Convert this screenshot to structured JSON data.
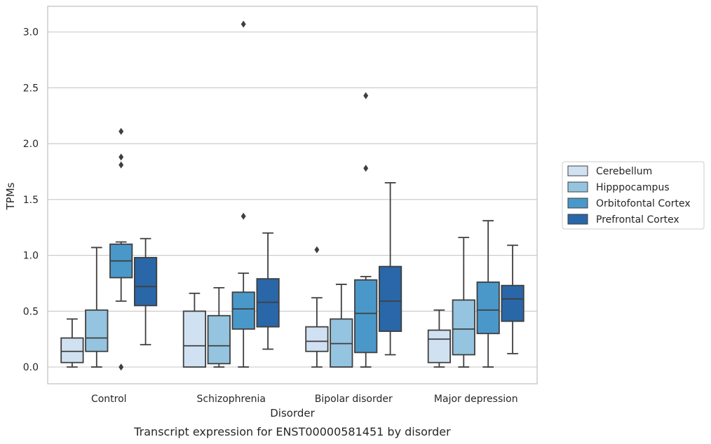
{
  "chart_data": {
    "type": "boxplot",
    "title": "",
    "caption": "Transcript expression for ENST00000581451 by disorder",
    "xlabel": "Disorder",
    "ylabel": "TPMs",
    "ylim": [
      -0.15,
      3.23
    ],
    "yticks": [
      "0.0",
      "0.5",
      "1.0",
      "1.5",
      "2.0",
      "2.5",
      "3.0"
    ],
    "grid": "horizontal",
    "legend_position": "right",
    "categories": [
      "Control",
      "Schizophrenia",
      "Bipolar disorder",
      "Major depression"
    ],
    "series": [
      {
        "name": "Cerebellum",
        "color": "#d0e1f2",
        "boxes": [
          {
            "whislo": 0.0,
            "q1": 0.04,
            "med": 0.14,
            "q3": 0.26,
            "whishi": 0.43,
            "fliers": []
          },
          {
            "whislo": 0.0,
            "q1": 0.0,
            "med": 0.19,
            "q3": 0.5,
            "whishi": 0.66,
            "fliers": []
          },
          {
            "whislo": 0.0,
            "q1": 0.14,
            "med": 0.23,
            "q3": 0.36,
            "whishi": 0.62,
            "fliers": [
              1.05
            ]
          },
          {
            "whislo": 0.0,
            "q1": 0.04,
            "med": 0.25,
            "q3": 0.33,
            "whishi": 0.51,
            "fliers": []
          }
        ]
      },
      {
        "name": "Hipppocampus",
        "color": "#94c4df",
        "boxes": [
          {
            "whislo": 0.0,
            "q1": 0.14,
            "med": 0.26,
            "q3": 0.51,
            "whishi": 1.07,
            "fliers": []
          },
          {
            "whislo": 0.0,
            "q1": 0.03,
            "med": 0.19,
            "q3": 0.46,
            "whishi": 0.71,
            "fliers": []
          },
          {
            "whislo": 0.0,
            "q1": 0.0,
            "med": 0.21,
            "q3": 0.43,
            "whishi": 0.74,
            "fliers": []
          },
          {
            "whislo": 0.0,
            "q1": 0.11,
            "med": 0.34,
            "q3": 0.6,
            "whishi": 1.16,
            "fliers": []
          }
        ]
      },
      {
        "name": "Orbitofontal Cortex",
        "color": "#4a98c9",
        "boxes": [
          {
            "whislo": 0.59,
            "q1": 0.8,
            "med": 0.95,
            "q3": 1.1,
            "whishi": 1.12,
            "fliers": [
              0.0,
              1.81,
              1.88,
              2.11
            ]
          },
          {
            "whislo": 0.0,
            "q1": 0.34,
            "med": 0.52,
            "q3": 0.67,
            "whishi": 0.84,
            "fliers": [
              1.35,
              3.07
            ]
          },
          {
            "whislo": 0.0,
            "q1": 0.13,
            "med": 0.48,
            "q3": 0.78,
            "whishi": 0.81,
            "fliers": [
              1.78,
              2.43
            ]
          },
          {
            "whislo": 0.0,
            "q1": 0.3,
            "med": 0.51,
            "q3": 0.76,
            "whishi": 1.31,
            "fliers": []
          }
        ]
      },
      {
        "name": "Prefrontal Cortex",
        "color": "#2967a8",
        "boxes": [
          {
            "whislo": 0.2,
            "q1": 0.55,
            "med": 0.72,
            "q3": 0.98,
            "whishi": 1.15,
            "fliers": []
          },
          {
            "whislo": 0.16,
            "q1": 0.36,
            "med": 0.58,
            "q3": 0.79,
            "whishi": 1.2,
            "fliers": []
          },
          {
            "whislo": 0.11,
            "q1": 0.32,
            "med": 0.59,
            "q3": 0.9,
            "whishi": 1.65,
            "fliers": []
          },
          {
            "whislo": 0.12,
            "q1": 0.41,
            "med": 0.61,
            "q3": 0.73,
            "whishi": 1.09,
            "fliers": []
          }
        ]
      }
    ]
  }
}
